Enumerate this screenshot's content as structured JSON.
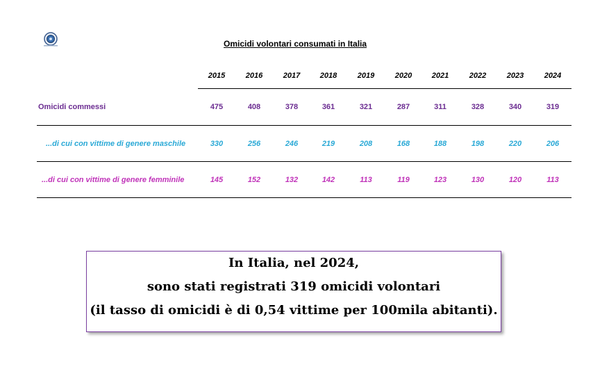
{
  "title": "Omicidi volontari consumati in Italia",
  "logo": {
    "icon": "police-emblem-icon"
  },
  "years": [
    "2015",
    "2016",
    "2017",
    "2018",
    "2019",
    "2020",
    "2021",
    "2022",
    "2023",
    "2024"
  ],
  "rows": [
    {
      "label": "Omicidi commessi",
      "color": "#6b2c91",
      "values": [
        "475",
        "408",
        "378",
        "361",
        "321",
        "287",
        "311",
        "328",
        "340",
        "319"
      ]
    },
    {
      "label": "...di cui con vittime di genere maschile",
      "color": "#2aa9d6",
      "values": [
        "330",
        "256",
        "246",
        "219",
        "208",
        "168",
        "188",
        "198",
        "220",
        "206"
      ]
    },
    {
      "label": "...di cui con vittime di genere femminile",
      "color": "#c033b9",
      "values": [
        "145",
        "152",
        "132",
        "142",
        "113",
        "119",
        "123",
        "130",
        "120",
        "113"
      ]
    }
  ],
  "callout": {
    "line1": "In Italia, nel 2024,",
    "line2": "sono stati registrati 319 omicidi volontari",
    "line3": "(il tasso di omicidi è di 0,54 vittime per 100mila abitanti)."
  }
}
